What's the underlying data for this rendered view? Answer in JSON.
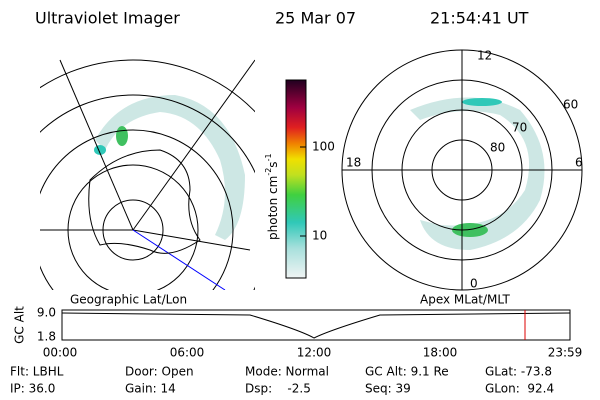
{
  "header": {
    "instrument": "Ultraviolet Imager",
    "date": "25 Mar 07",
    "time": "21:54:41 UT"
  },
  "polar_plot": {
    "labels": [
      "12",
      "0",
      "18",
      "6",
      "60",
      "70",
      "80"
    ]
  },
  "colorbar": {
    "ticks": [
      "100",
      "10"
    ],
    "unit": {
      "base": "photon cm",
      "exp1": "-2",
      "mid": "s",
      "exp2": "-1"
    }
  },
  "projection": {
    "left": "Geographic Lat/Lon",
    "right": "Apex MLat/MLT"
  },
  "altitude_plot": {
    "axis_label": "GC Alt",
    "yticks": [
      "9.0",
      "1.8"
    ],
    "xticks": [
      "00:00",
      "06:00",
      "12:00",
      "18:00",
      "23:59"
    ]
  },
  "info": {
    "rows": [
      [
        "Flt: LBHL",
        "Door: Open",
        "Mode: Normal",
        "GC Alt: 9.1 Re",
        "GLat: -73.8"
      ],
      [
        "IP: 36.0",
        "Gain: 14",
        "Dsp:    -2.5",
        "Seq: 39",
        "GLon:  92.4"
      ]
    ]
  }
}
